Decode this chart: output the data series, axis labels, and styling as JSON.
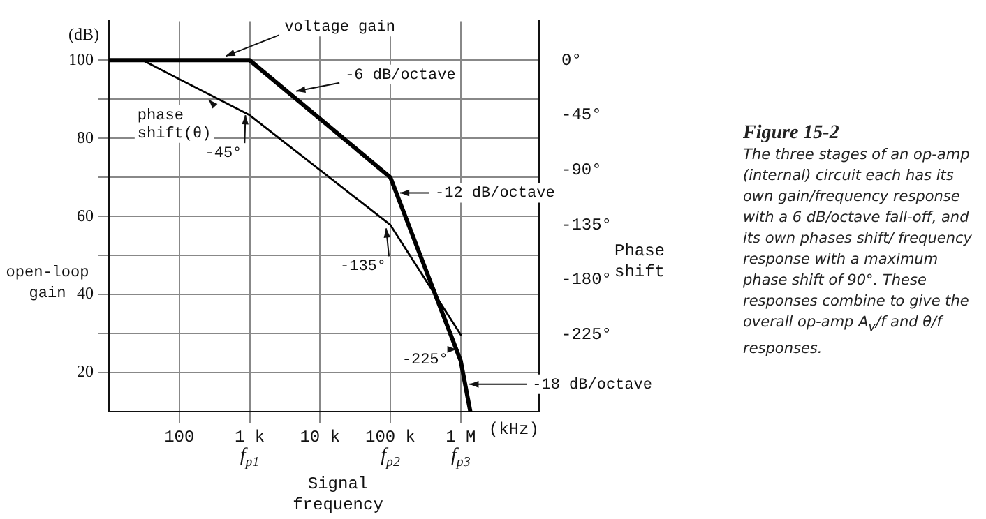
{
  "chart_data": {
    "type": "line",
    "title": "Figure 15-2",
    "xlabel": "Signal frequency",
    "ylabel": "open-loop gain",
    "y2label": "Phase shift",
    "log": "x",
    "grid": true,
    "legend": false,
    "marker": "none",
    "line_style": "solid",
    "xlim": [
      10,
      13000000
    ],
    "xticks": [
      {
        "value": 100,
        "label": "100"
      },
      {
        "value": 1000,
        "label": "1 k"
      },
      {
        "value": 10000,
        "label": "10 k"
      },
      {
        "value": 100000,
        "label": "100 k"
      },
      {
        "value": 1000000,
        "label": "1 M"
      }
    ],
    "ylim": [
      10,
      110
    ],
    "yticks": [
      20,
      {
        "value": 30,
        "label": null
      },
      40,
      {
        "value": 50,
        "label": null
      },
      60,
      {
        "value": 70,
        "label": null
      },
      80,
      {
        "value": 90,
        "label": null
      },
      100
    ],
    "y2lim": [
      -288,
      32
    ],
    "y2ticks": [
      {
        "value": 0,
        "label": "0°"
      },
      {
        "value": -45,
        "label": "-45°"
      },
      {
        "value": -90,
        "label": "-90°"
      },
      {
        "value": -135,
        "label": "-135°"
      },
      {
        "value": -180,
        "label": "-180°"
      },
      {
        "value": -225,
        "label": "-225°"
      }
    ],
    "series": [
      {
        "color": "#000000",
        "x": [
          10,
          1000,
          100000,
          1000000,
          1370000
        ],
        "values": [
          100,
          100,
          70,
          23,
          10
        ]
      },
      {
        "color": "#000000",
        "axis": "y2",
        "x": [
          10,
          30,
          1000,
          100000,
          1000000
        ],
        "values": [
          0,
          0,
          -45,
          -135,
          -225
        ]
      }
    ],
    "annotations": [
      {
        "text": "voltage gain",
        "x": 400,
        "y": 100
      },
      {
        "text": "-6 dB/octave",
        "x": 4000,
        "y": 91
      },
      {
        "text": "-12 dB/octave",
        "x": 120000,
        "y": 66
      },
      {
        "text": "-18 dB/octave",
        "x": 1160000,
        "y": 17
      },
      {
        "text": "phase shift(θ)",
        "x": 300,
        "y": 91
      },
      {
        "text": "-45°",
        "x": 1000,
        "y": 87
      },
      {
        "text": "-135°",
        "x": 100000,
        "y": 58
      },
      {
        "text": "-225°",
        "x": 1000000,
        "y": 27
      },
      "(dB)",
      "(kHz)",
      "f$_{p1}$",
      "f$_{p2}$",
      "f$_{p3}$",
      "The three stages of an op-amp (internal) circuit each has its own gain/frequency response with a 6 dB/octave fall-off, and its own phases shift/ frequency response with a maximum phase shift of 90°. These responses combine to give the overall op-amp A$_{v}$/f and θ/f responses."
    ]
  }
}
